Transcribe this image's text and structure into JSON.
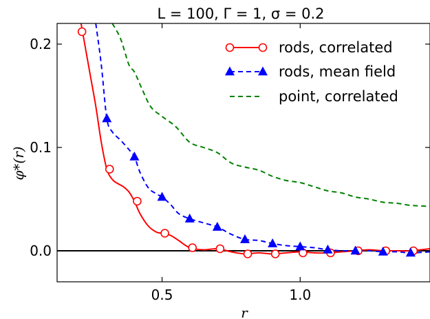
{
  "chart_data": {
    "type": "line",
    "title": "L = 100, Γ = 1, σ = 0.2",
    "xlabel": "r",
    "ylabel": "φ*(r)",
    "xlim": [
      0.12,
      1.47
    ],
    "ylim": [
      -0.03,
      0.22
    ],
    "xticks": [
      0.5,
      1.0
    ],
    "xtick_labels": [
      "0.5",
      "1.0"
    ],
    "yticks": [
      0.0,
      0.1,
      0.2
    ],
    "ytick_labels": [
      "0.0",
      "0.1",
      "0.2"
    ],
    "zero_line": true,
    "grid": false,
    "legend_position": "top-right",
    "series": [
      {
        "name": "rods, correlated",
        "color": "#ff0000",
        "line_style": "solid",
        "marker": "open-circle",
        "curve_x": [
          0.2,
          0.22,
          0.24,
          0.26,
          0.28,
          0.3,
          0.32,
          0.34,
          0.36,
          0.38,
          0.4,
          0.42,
          0.45,
          0.48,
          0.5,
          0.53,
          0.56,
          0.6,
          0.65,
          0.7,
          0.75,
          0.8,
          0.85,
          0.9,
          0.95,
          1.0,
          1.05,
          1.1,
          1.15,
          1.2,
          1.25,
          1.3,
          1.35,
          1.4,
          1.47
        ],
        "curve_y": [
          0.23,
          0.2,
          0.17,
          0.14,
          0.105,
          0.079,
          0.069,
          0.065,
          0.062,
          0.057,
          0.048,
          0.036,
          0.024,
          0.018,
          0.017,
          0.015,
          0.01,
          0.003,
          0.001,
          0.002,
          -0.001,
          -0.003,
          -0.002,
          -0.003,
          -0.002,
          -0.001,
          -0.002,
          -0.002,
          -0.001,
          0.0,
          0.001,
          0.0,
          0.0,
          0.0,
          0.002
        ],
        "markers_x": [
          0.21,
          0.31,
          0.41,
          0.51,
          0.61,
          0.71,
          0.81,
          0.91,
          1.01,
          1.11,
          1.21,
          1.31,
          1.41
        ],
        "markers_y": [
          0.212,
          0.079,
          0.048,
          0.017,
          0.003,
          0.002,
          -0.003,
          -0.003,
          -0.002,
          -0.002,
          0.0,
          0.0,
          0.0
        ]
      },
      {
        "name": "rods, mean field",
        "color": "#0000ff",
        "line_style": "dashed",
        "marker": "filled-triangle",
        "curve_x": [
          0.26,
          0.28,
          0.3,
          0.32,
          0.35,
          0.38,
          0.4,
          0.42,
          0.45,
          0.48,
          0.5,
          0.53,
          0.56,
          0.6,
          0.65,
          0.7,
          0.75,
          0.8,
          0.85,
          0.9,
          0.95,
          1.0,
          1.05,
          1.1,
          1.15,
          1.2,
          1.25,
          1.3,
          1.35,
          1.4,
          1.47
        ],
        "curve_y": [
          0.22,
          0.18,
          0.128,
          0.115,
          0.107,
          0.098,
          0.091,
          0.076,
          0.061,
          0.055,
          0.052,
          0.045,
          0.036,
          0.031,
          0.027,
          0.023,
          0.016,
          0.011,
          0.01,
          0.007,
          0.005,
          0.004,
          0.003,
          0.001,
          0.0,
          0.0,
          0.0,
          -0.001,
          -0.001,
          -0.002,
          -0.001
        ],
        "markers_x": [
          0.3,
          0.4,
          0.5,
          0.6,
          0.7,
          0.8,
          0.9,
          1.0,
          1.1,
          1.2,
          1.3,
          1.4
        ],
        "markers_y": [
          0.128,
          0.091,
          0.052,
          0.031,
          0.023,
          0.011,
          0.007,
          0.004,
          0.001,
          0.0,
          -0.001,
          -0.002
        ]
      },
      {
        "name": "point, correlated",
        "color": "#008000",
        "line_style": "dashed",
        "marker": "none",
        "curve_x": [
          0.32,
          0.35,
          0.38,
          0.4,
          0.43,
          0.46,
          0.5,
          0.55,
          0.6,
          0.65,
          0.7,
          0.75,
          0.8,
          0.85,
          0.9,
          0.95,
          1.0,
          1.05,
          1.1,
          1.15,
          1.2,
          1.25,
          1.3,
          1.35,
          1.4,
          1.47
        ],
        "curve_y": [
          0.22,
          0.205,
          0.18,
          0.173,
          0.155,
          0.139,
          0.13,
          0.12,
          0.105,
          0.1,
          0.095,
          0.085,
          0.081,
          0.078,
          0.072,
          0.068,
          0.066,
          0.062,
          0.058,
          0.056,
          0.052,
          0.05,
          0.047,
          0.046,
          0.044,
          0.043
        ]
      }
    ]
  },
  "icons": {
    "circle": "open-circle-marker-icon",
    "triangle": "filled-triangle-marker-icon"
  }
}
